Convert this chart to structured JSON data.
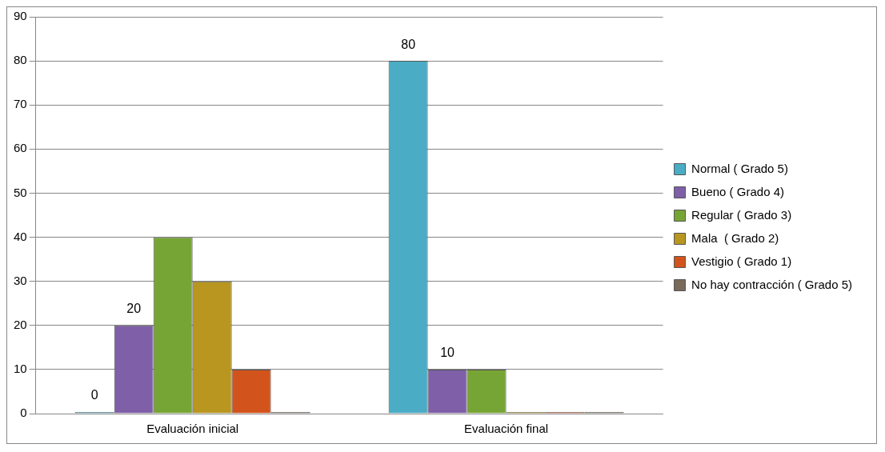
{
  "chart_data": {
    "type": "bar",
    "categories": [
      "Evaluación inicial",
      "Evaluación final"
    ],
    "series": [
      {
        "name": "Normal ( Grado 5)",
        "color": "#4bacc6",
        "values": [
          0,
          80
        ],
        "value_labels": [
          "0",
          "80"
        ]
      },
      {
        "name": "Bueno ( Grado 4)",
        "color": "#7f5fa8",
        "values": [
          20,
          10
        ],
        "value_labels": [
          "20",
          "10"
        ]
      },
      {
        "name": "Regular ( Grado 3)",
        "color": "#77a535",
        "values": [
          40,
          10
        ]
      },
      {
        "name": "Mala  ( Grado 2)",
        "color": "#b8961f",
        "values": [
          30,
          0
        ]
      },
      {
        "name": "Vestigio ( Grado 1)",
        "color": "#d2541c",
        "values": [
          10,
          0
        ]
      },
      {
        "name": "No hay contracción ( Grado 5)",
        "color": "#7a6a5a",
        "values": [
          0,
          0
        ]
      }
    ],
    "ylim": [
      0,
      90
    ],
    "yticks": [
      0,
      10,
      20,
      30,
      40,
      50,
      60,
      70,
      80,
      90
    ],
    "grid": "y",
    "legend": "right"
  }
}
